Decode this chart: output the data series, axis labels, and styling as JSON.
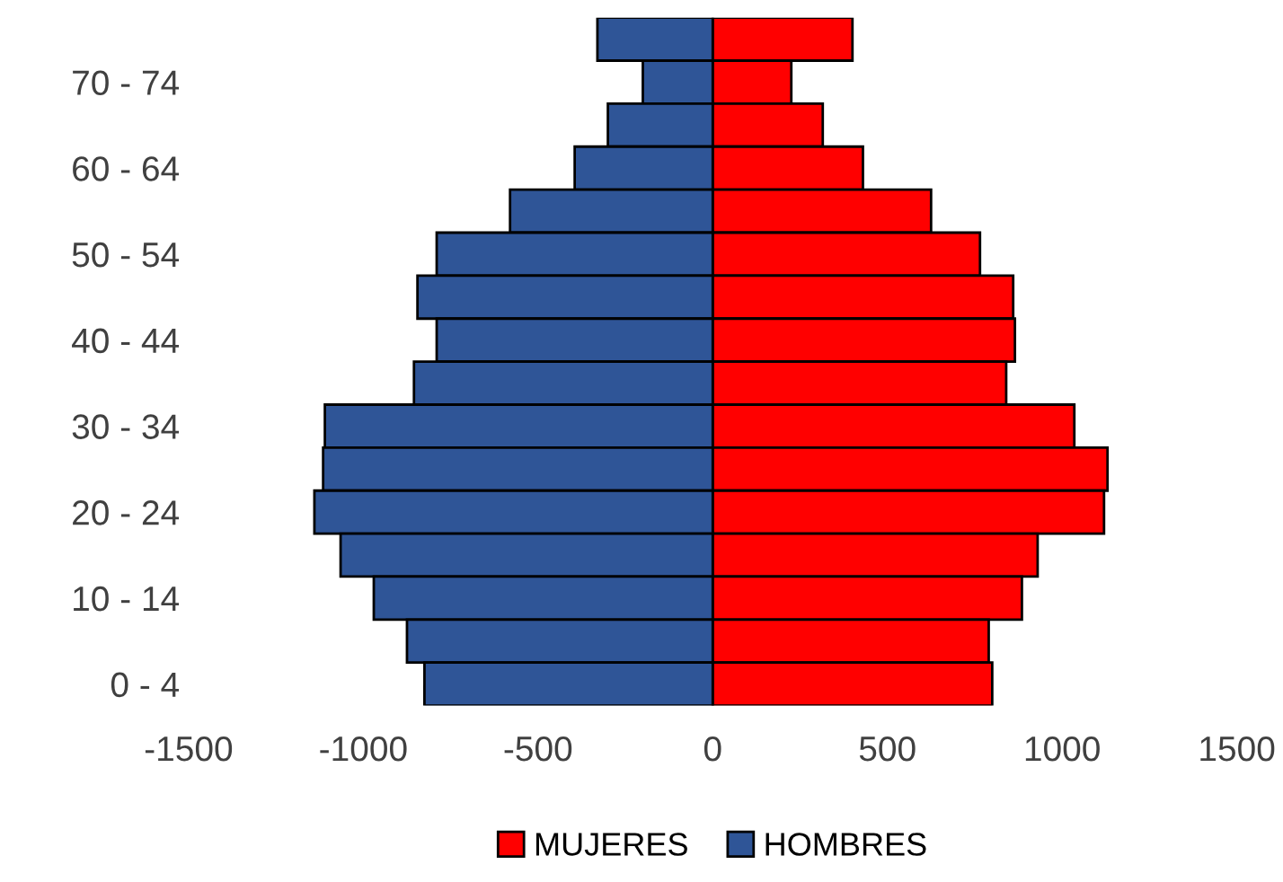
{
  "chart_data": {
    "type": "bar",
    "orientation": "horizontal",
    "categories": [
      null,
      "70 - 74",
      null,
      "60 - 64",
      null,
      "50 - 54",
      null,
      "40 - 44",
      null,
      "30 - 34",
      null,
      "20 - 24",
      null,
      "10 - 14",
      null,
      "0 - 4"
    ],
    "series": [
      {
        "name": "MUJERES",
        "color": "#ff0000",
        "values": [
          400,
          225,
          315,
          430,
          625,
          765,
          860,
          865,
          840,
          1035,
          1130,
          1120,
          930,
          885,
          790,
          800
        ]
      },
      {
        "name": "HOMBRES",
        "color": "#2f5597",
        "values": [
          -330,
          -200,
          -300,
          -395,
          -580,
          -790,
          -845,
          -790,
          -855,
          -1110,
          -1115,
          -1140,
          -1065,
          -970,
          -875,
          -825
        ]
      }
    ],
    "xlim": [
      -1500,
      1500
    ],
    "xticks": [
      -1500,
      -1000,
      -500,
      0,
      500,
      1000,
      1500
    ],
    "stacked": true,
    "legend": "bottom"
  }
}
